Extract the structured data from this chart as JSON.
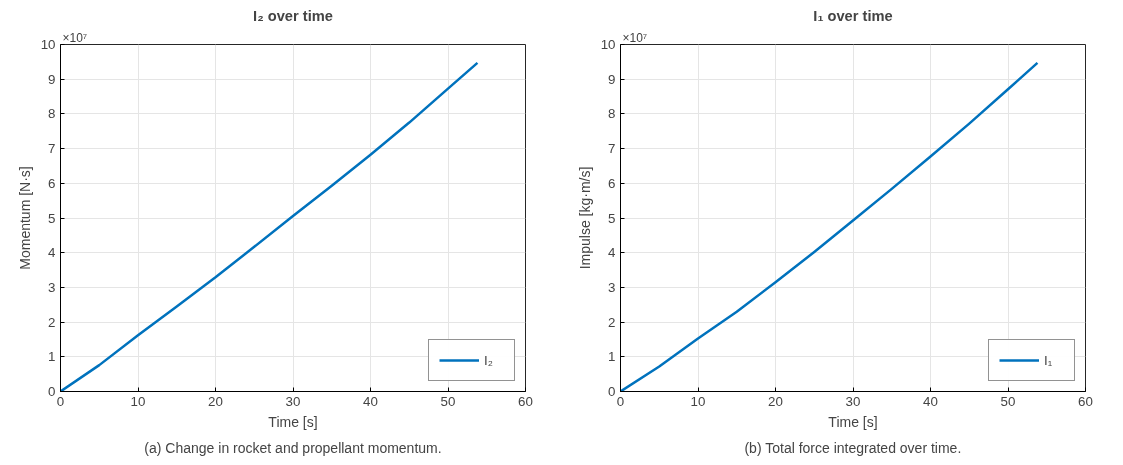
{
  "chart_data": [
    {
      "type": "line",
      "title": "I₂ over time",
      "xlabel": "Time [s]",
      "ylabel": "Momentum [N·s]",
      "x": [
        0,
        5,
        10,
        15,
        20,
        25,
        30,
        35,
        40,
        45,
        50,
        53.8
      ],
      "series": [
        {
          "name": "I₂",
          "color": "#0072bd",
          "values": [
            0,
            0.76,
            1.62,
            2.45,
            3.29,
            4.17,
            5.06,
            5.93,
            6.82,
            7.75,
            8.73,
            9.47
          ]
        }
      ],
      "xlim": [
        0,
        60
      ],
      "xticks": [
        0,
        10,
        20,
        30,
        40,
        50,
        60
      ],
      "ylim": [
        0,
        10
      ],
      "yticks": [
        0,
        1,
        2,
        3,
        4,
        5,
        6,
        7,
        8,
        9,
        10
      ],
      "grid": true,
      "legend": "bottom right",
      "line_style": "solid",
      "annotations": [
        "×10⁷",
        "(a) Change in rocket and propellant momentum."
      ]
    },
    {
      "type": "line",
      "title": "I₁ over time",
      "xlabel": "Time [s]",
      "ylabel": "Impulse [kg·m/s]",
      "x": [
        0,
        5,
        10,
        15,
        20,
        25,
        30,
        35,
        40,
        45,
        50,
        53.8
      ],
      "series": [
        {
          "name": "I₁",
          "color": "#0072bd",
          "values": [
            0,
            0.72,
            1.53,
            2.3,
            3.15,
            4.02,
            4.93,
            5.84,
            6.77,
            7.72,
            8.71,
            9.47
          ]
        }
      ],
      "xlim": [
        0,
        60
      ],
      "xticks": [
        0,
        10,
        20,
        30,
        40,
        50,
        60
      ],
      "ylim": [
        0,
        10
      ],
      "yticks": [
        0,
        1,
        2,
        3,
        4,
        5,
        6,
        7,
        8,
        9,
        10
      ],
      "grid": true,
      "legend": "bottom right",
      "line_style": "solid",
      "annotations": [
        "×10⁷",
        "(b) Total force integrated over time."
      ]
    }
  ]
}
